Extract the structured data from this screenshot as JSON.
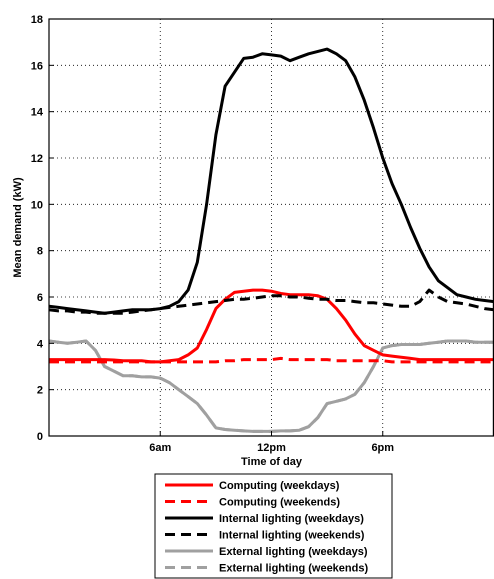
{
  "chart_data": {
    "type": "line",
    "title": "",
    "xlabel": "Time of day",
    "ylabel": "Mean demand (kW)",
    "xlim": [
      0,
      24
    ],
    "ylim": [
      0,
      18
    ],
    "grid": true,
    "legend_position": "below",
    "xticks": [
      {
        "value": 6,
        "label": "6am"
      },
      {
        "value": 12,
        "label": "12pm"
      },
      {
        "value": 18,
        "label": "6pm"
      }
    ],
    "yticks": [
      {
        "value": 0,
        "label": "0"
      },
      {
        "value": 2,
        "label": "2"
      },
      {
        "value": 4,
        "label": "4"
      },
      {
        "value": 6,
        "label": "6"
      },
      {
        "value": 8,
        "label": "8"
      },
      {
        "value": 10,
        "label": "10"
      },
      {
        "value": 12,
        "label": "12"
      },
      {
        "value": 14,
        "label": "14"
      },
      {
        "value": 16,
        "label": "16"
      },
      {
        "value": 18,
        "label": "18"
      }
    ],
    "x": [
      0,
      0.5,
      1,
      1.5,
      2,
      2.5,
      3,
      3.5,
      4,
      4.5,
      5,
      5.5,
      6,
      6.5,
      7,
      7.5,
      8,
      8.5,
      9,
      9.5,
      10,
      10.5,
      11,
      11.5,
      12,
      12.5,
      13,
      13.5,
      14,
      14.5,
      15,
      15.5,
      16,
      16.5,
      17,
      17.5,
      18,
      18.5,
      19,
      19.5,
      20,
      20.5,
      21,
      21.5,
      22,
      22.5,
      23,
      23.5,
      24
    ],
    "series": [
      {
        "name": "Computing (weekdays)",
        "color": "#ff0000",
        "dash": "solid",
        "values": [
          3.3,
          3.3,
          3.3,
          3.3,
          3.3,
          3.3,
          3.3,
          3.28,
          3.25,
          3.25,
          3.25,
          3.2,
          3.2,
          3.25,
          3.3,
          3.5,
          3.8,
          4.6,
          5.5,
          5.9,
          6.2,
          6.25,
          6.3,
          6.3,
          6.25,
          6.15,
          6.1,
          6.1,
          6.1,
          6.05,
          5.9,
          5.5,
          5.0,
          4.4,
          3.9,
          3.7,
          3.5,
          3.45,
          3.4,
          3.35,
          3.3,
          3.3,
          3.3,
          3.3,
          3.3,
          3.3,
          3.3,
          3.3,
          3.3
        ]
      },
      {
        "name": "Computing (weekends)",
        "color": "#ff0000",
        "dash": "dashed",
        "values": [
          3.2,
          3.2,
          3.2,
          3.2,
          3.2,
          3.2,
          3.2,
          3.2,
          3.2,
          3.2,
          3.2,
          3.2,
          3.2,
          3.2,
          3.2,
          3.2,
          3.2,
          3.2,
          3.2,
          3.25,
          3.25,
          3.3,
          3.3,
          3.3,
          3.3,
          3.35,
          3.3,
          3.3,
          3.3,
          3.3,
          3.3,
          3.25,
          3.25,
          3.25,
          3.25,
          3.25,
          3.25,
          3.2,
          3.2,
          3.2,
          3.2,
          3.2,
          3.2,
          3.2,
          3.2,
          3.2,
          3.2,
          3.2,
          3.2
        ]
      },
      {
        "name": "Internal lighting (weekdays)",
        "color": "#000000",
        "dash": "solid",
        "values": [
          5.6,
          5.55,
          5.5,
          5.45,
          5.4,
          5.35,
          5.3,
          5.35,
          5.4,
          5.45,
          5.45,
          5.45,
          5.5,
          5.6,
          5.8,
          6.3,
          7.5,
          10.0,
          13.0,
          15.1,
          15.7,
          16.3,
          16.35,
          16.5,
          16.45,
          16.4,
          16.2,
          16.35,
          16.5,
          16.6,
          16.7,
          16.5,
          16.2,
          15.5,
          14.5,
          13.3,
          12.0,
          10.9,
          10.0,
          9.0,
          8.1,
          7.3,
          6.7,
          6.4,
          6.1,
          6.0,
          5.9,
          5.85,
          5.8
        ]
      },
      {
        "name": "Internal lighting (weekends)",
        "color": "#000000",
        "dash": "dashed",
        "values": [
          5.45,
          5.4,
          5.4,
          5.35,
          5.35,
          5.3,
          5.3,
          5.3,
          5.3,
          5.35,
          5.4,
          5.45,
          5.5,
          5.55,
          5.6,
          5.65,
          5.7,
          5.75,
          5.8,
          5.85,
          5.9,
          5.9,
          5.95,
          6.0,
          6.05,
          6.05,
          6.0,
          6.0,
          5.95,
          5.9,
          5.9,
          5.85,
          5.85,
          5.8,
          5.75,
          5.75,
          5.7,
          5.65,
          5.6,
          5.6,
          5.8,
          6.3,
          6.0,
          5.8,
          5.75,
          5.7,
          5.6,
          5.5,
          5.45
        ]
      },
      {
        "name": "External lighting (weekdays)",
        "color": "#a0a0a0",
        "dash": "solid",
        "values": [
          4.1,
          4.05,
          4.0,
          4.05,
          4.1,
          3.7,
          3.0,
          2.8,
          2.6,
          2.6,
          2.55,
          2.55,
          2.5,
          2.3,
          2.0,
          1.7,
          1.4,
          0.9,
          0.35,
          0.28,
          0.25,
          0.22,
          0.2,
          0.2,
          0.2,
          0.22,
          0.22,
          0.25,
          0.4,
          0.8,
          1.4,
          1.5,
          1.6,
          1.8,
          2.3,
          3.0,
          3.8,
          3.9,
          3.95,
          3.95,
          3.95,
          4.0,
          4.05,
          4.1,
          4.1,
          4.1,
          4.05,
          4.05,
          4.05
        ]
      },
      {
        "name": "External lighting (weekends)",
        "color": "#a0a0a0",
        "dash": "dashed",
        "values": [
          4.1,
          4.05,
          4.0,
          4.05,
          4.1,
          3.7,
          3.0,
          2.8,
          2.6,
          2.6,
          2.55,
          2.55,
          2.5,
          2.3,
          2.0,
          1.7,
          1.4,
          0.9,
          0.35,
          0.28,
          0.25,
          0.22,
          0.2,
          0.2,
          0.2,
          0.22,
          0.22,
          0.25,
          0.4,
          0.8,
          1.4,
          1.5,
          1.6,
          1.8,
          2.3,
          3.0,
          3.8,
          3.9,
          3.95,
          3.95,
          3.95,
          4.0,
          4.05,
          4.1,
          4.1,
          4.1,
          4.05,
          4.05,
          4.05
        ]
      }
    ]
  }
}
